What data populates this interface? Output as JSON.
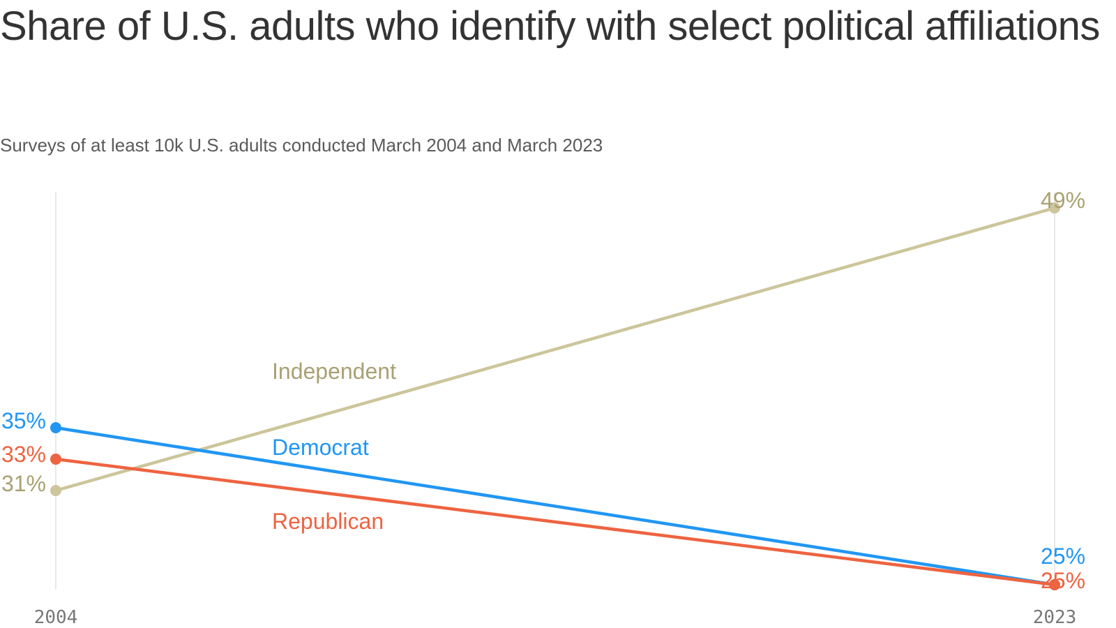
{
  "title": "Share of U.S. adults who identify with select political affiliations",
  "subtitle": "Surveys of at least 10k U.S. adults conducted March 2004 and March 2023",
  "chart_data": {
    "type": "line",
    "title": "Share of U.S. adults who identify with select political affiliations",
    "subtitle": "Surveys of at least 10k U.S. adults conducted March 2004 and March 2023",
    "x": [
      "2004",
      "2023"
    ],
    "xlabel": "",
    "ylabel": "",
    "ylim": [
      22,
      50
    ],
    "grid": "vertical lines at each x tick",
    "legend": "series labels placed inline on the lines",
    "series": [
      {
        "name": "Independent",
        "values": [
          31,
          49
        ],
        "value_labels": [
          "31%",
          "49%"
        ],
        "color": "#cdc59b",
        "label_color": "#a9a173"
      },
      {
        "name": "Democrat",
        "values": [
          35,
          25
        ],
        "value_labels": [
          "35%",
          "25%"
        ],
        "color": "#2196f3",
        "label_color": "#2196f3"
      },
      {
        "name": "Republican",
        "values": [
          33,
          25
        ],
        "value_labels": [
          "33%",
          "25%"
        ],
        "color": "#ee6340",
        "label_color": "#ee6340"
      }
    ]
  }
}
